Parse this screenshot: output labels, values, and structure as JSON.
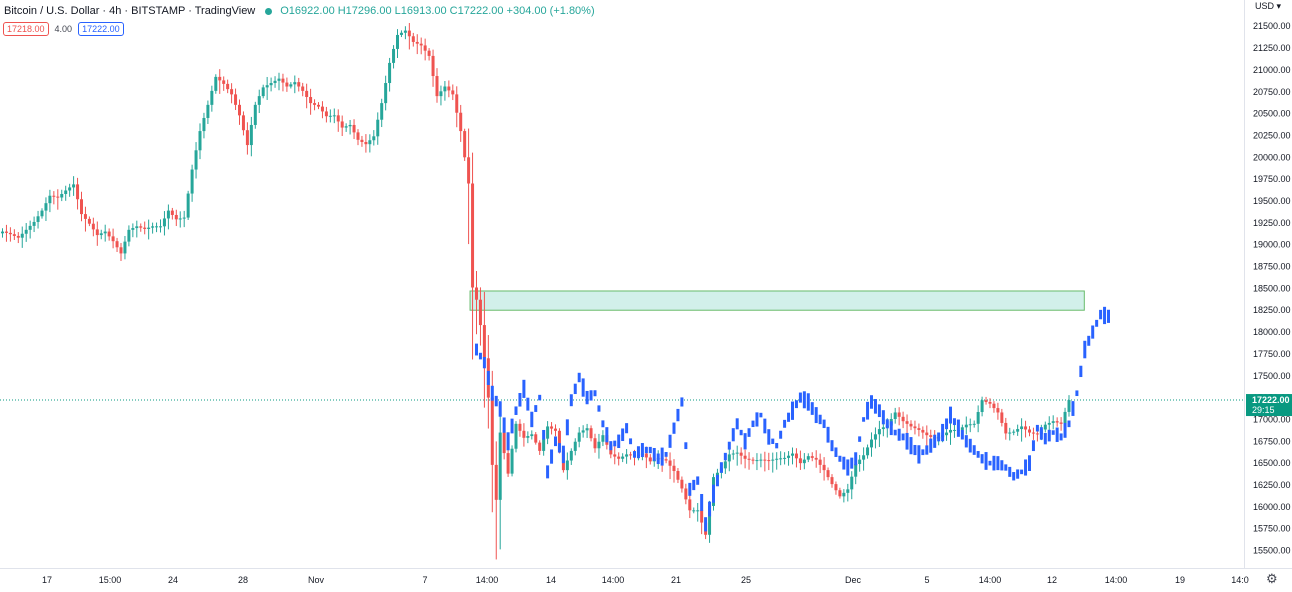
{
  "header": {
    "title": "Bitcoin / U.S. Dollar · 4h · BITSTAMP · TradingView",
    "ohlc": "O16922.00 H17296.00 L16913.00 C17222.00 +304.00 (+1.80%)"
  },
  "quote": {
    "bid": "17218.00",
    "spread": "4.00",
    "ask": "17222.00"
  },
  "currency": "USD ▾",
  "settings_icon": "gear-icon",
  "colors": {
    "up": "#26a69a",
    "down": "#ef5350",
    "projection": "#2962ff",
    "zone_fill": "#d2f0ea",
    "zone_border": "#66bb6a",
    "last_price": "#089981"
  },
  "last_price": {
    "value": 17222,
    "label": "17222.00",
    "countdown": "29:15"
  },
  "chart_data": {
    "type": "candlestick",
    "x_tick_labels": [
      "17",
      "15:00",
      "24",
      "28",
      "Nov",
      "7",
      "14:00",
      "14",
      "14:00",
      "21",
      "25",
      "Dec",
      "5",
      "14:00",
      "12",
      "14:00",
      "19",
      "14:0"
    ],
    "y_ticks": [
      15500,
      15750,
      16000,
      16250,
      16500,
      16750,
      17000,
      17250,
      17500,
      17750,
      18000,
      18250,
      18500,
      18750,
      19000,
      19250,
      19500,
      19750,
      20000,
      20250,
      20500,
      20750,
      21000,
      21250,
      21500
    ],
    "y_tick_labels": [
      "15500.00",
      "15750.00",
      "16000.00",
      "16250.00",
      "16500.00",
      "16750.00",
      "17000.00",
      "17250.00",
      "17500.00",
      "17750.00",
      "18000.00",
      "18250.00",
      "18500.00",
      "18750.00",
      "19000.00",
      "19250.00",
      "19500.00",
      "19750.00",
      "20000.00",
      "20250.00",
      "20500.00",
      "20750.00",
      "21000.00",
      "21250.00",
      "21500.00"
    ],
    "ylim": [
      15300,
      21800
    ],
    "price_series": [
      [
        0,
        19150
      ],
      [
        2,
        19120
      ],
      [
        4,
        19080
      ],
      [
        6,
        19170
      ],
      [
        8,
        19260
      ],
      [
        10,
        19390
      ],
      [
        12,
        19560
      ],
      [
        14,
        19540
      ],
      [
        16,
        19620
      ],
      [
        18,
        19690
      ],
      [
        20,
        19350
      ],
      [
        22,
        19240
      ],
      [
        24,
        19110
      ],
      [
        26,
        19150
      ],
      [
        28,
        19040
      ],
      [
        30,
        18900
      ],
      [
        32,
        19170
      ],
      [
        34,
        19210
      ],
      [
        36,
        19180
      ],
      [
        38,
        19210
      ],
      [
        40,
        19210
      ],
      [
        42,
        19390
      ],
      [
        44,
        19290
      ],
      [
        46,
        19310
      ],
      [
        48,
        19860
      ],
      [
        50,
        20300
      ],
      [
        52,
        20600
      ],
      [
        54,
        20920
      ],
      [
        56,
        20840
      ],
      [
        58,
        20720
      ],
      [
        60,
        20480
      ],
      [
        62,
        20140
      ],
      [
        64,
        20600
      ],
      [
        66,
        20800
      ],
      [
        68,
        20850
      ],
      [
        70,
        20900
      ],
      [
        72,
        20810
      ],
      [
        74,
        20860
      ],
      [
        76,
        20760
      ],
      [
        78,
        20620
      ],
      [
        80,
        20580
      ],
      [
        82,
        20470
      ],
      [
        84,
        20480
      ],
      [
        86,
        20340
      ],
      [
        88,
        20370
      ],
      [
        90,
        20200
      ],
      [
        92,
        20150
      ],
      [
        94,
        20240
      ],
      [
        96,
        20620
      ],
      [
        98,
        21080
      ],
      [
        100,
        21400
      ],
      [
        102,
        21450
      ],
      [
        104,
        21320
      ],
      [
        106,
        21280
      ],
      [
        108,
        21160
      ],
      [
        110,
        20700
      ],
      [
        112,
        20810
      ],
      [
        114,
        20720
      ],
      [
        116,
        20300
      ],
      [
        118,
        19700
      ],
      [
        119,
        18510
      ],
      [
        120,
        18370
      ],
      [
        121,
        18080
      ],
      [
        122,
        17700
      ],
      [
        123,
        17250
      ],
      [
        124,
        16480
      ],
      [
        125,
        16080
      ],
      [
        126,
        16850
      ],
      [
        128,
        16380
      ],
      [
        130,
        16950
      ],
      [
        132,
        16790
      ],
      [
        134,
        16830
      ],
      [
        136,
        16640
      ],
      [
        138,
        16920
      ],
      [
        140,
        16870
      ],
      [
        142,
        16420
      ],
      [
        144,
        16640
      ],
      [
        146,
        16850
      ],
      [
        148,
        16900
      ],
      [
        150,
        16670
      ],
      [
        152,
        16820
      ],
      [
        154,
        16600
      ],
      [
        156,
        16550
      ],
      [
        158,
        16600
      ],
      [
        160,
        16580
      ],
      [
        162,
        16610
      ],
      [
        164,
        16520
      ],
      [
        166,
        16560
      ],
      [
        168,
        16530
      ],
      [
        170,
        16410
      ],
      [
        172,
        16210
      ],
      [
        174,
        15960
      ],
      [
        176,
        15960
      ],
      [
        178,
        15680
      ],
      [
        180,
        16340
      ],
      [
        182,
        16440
      ],
      [
        184,
        16600
      ],
      [
        186,
        16620
      ],
      [
        188,
        16550
      ],
      [
        190,
        16530
      ],
      [
        192,
        16540
      ],
      [
        194,
        16530
      ],
      [
        196,
        16550
      ],
      [
        198,
        16560
      ],
      [
        200,
        16610
      ],
      [
        202,
        16500
      ],
      [
        204,
        16580
      ],
      [
        206,
        16540
      ],
      [
        208,
        16420
      ],
      [
        210,
        16260
      ],
      [
        212,
        16120
      ],
      [
        214,
        16200
      ],
      [
        216,
        16490
      ],
      [
        218,
        16590
      ],
      [
        220,
        16770
      ],
      [
        222,
        16890
      ],
      [
        224,
        16930
      ],
      [
        226,
        17080
      ],
      [
        228,
        16980
      ],
      [
        230,
        16920
      ],
      [
        232,
        16880
      ],
      [
        234,
        16820
      ],
      [
        236,
        16780
      ],
      [
        238,
        16820
      ],
      [
        240,
        16880
      ],
      [
        242,
        16880
      ],
      [
        244,
        16940
      ],
      [
        246,
        16950
      ],
      [
        248,
        17220
      ],
      [
        250,
        17180
      ],
      [
        252,
        17080
      ],
      [
        254,
        16840
      ],
      [
        256,
        16860
      ],
      [
        258,
        16920
      ],
      [
        260,
        16850
      ],
      [
        262,
        16830
      ],
      [
        264,
        16940
      ],
      [
        266,
        16980
      ],
      [
        268,
        16950
      ],
      [
        270,
        17222
      ]
    ],
    "projection_series": [
      [
        120,
        17800
      ],
      [
        122,
        17650
      ],
      [
        124,
        17300
      ],
      [
        126,
        17120
      ],
      [
        128,
        16750
      ],
      [
        130,
        17100
      ],
      [
        132,
        17350
      ],
      [
        134,
        17000
      ],
      [
        136,
        17250
      ],
      [
        138,
        16400
      ],
      [
        140,
        16750
      ],
      [
        142,
        16600
      ],
      [
        144,
        17220
      ],
      [
        146,
        17480
      ],
      [
        148,
        17250
      ],
      [
        150,
        17300
      ],
      [
        152,
        16950
      ],
      [
        154,
        16700
      ],
      [
        156,
        16750
      ],
      [
        158,
        16900
      ],
      [
        160,
        16600
      ],
      [
        162,
        16650
      ],
      [
        164,
        16650
      ],
      [
        166,
        16550
      ],
      [
        168,
        16600
      ],
      [
        170,
        16900
      ],
      [
        172,
        17200
      ],
      [
        174,
        16200
      ],
      [
        176,
        16300
      ],
      [
        178,
        15800
      ],
      [
        180,
        16150
      ],
      [
        182,
        16450
      ],
      [
        184,
        16700
      ],
      [
        186,
        16950
      ],
      [
        188,
        16750
      ],
      [
        190,
        16950
      ],
      [
        192,
        17050
      ],
      [
        194,
        16800
      ],
      [
        196,
        16700
      ],
      [
        198,
        16950
      ],
      [
        200,
        17100
      ],
      [
        202,
        17250
      ],
      [
        204,
        17200
      ],
      [
        206,
        17050
      ],
      [
        208,
        16950
      ],
      [
        210,
        16700
      ],
      [
        212,
        16550
      ],
      [
        214,
        16450
      ],
      [
        216,
        16550
      ],
      [
        218,
        17000
      ],
      [
        220,
        17200
      ],
      [
        222,
        17100
      ],
      [
        224,
        16950
      ],
      [
        226,
        16850
      ],
      [
        228,
        16800
      ],
      [
        230,
        16700
      ],
      [
        232,
        16600
      ],
      [
        234,
        16650
      ],
      [
        236,
        16750
      ],
      [
        238,
        16850
      ],
      [
        240,
        17050
      ],
      [
        242,
        16900
      ],
      [
        244,
        16750
      ],
      [
        246,
        16650
      ],
      [
        248,
        16550
      ],
      [
        250,
        16500
      ],
      [
        252,
        16500
      ],
      [
        254,
        16450
      ],
      [
        256,
        16350
      ],
      [
        258,
        16400
      ],
      [
        260,
        16500
      ],
      [
        262,
        16900
      ],
      [
        264,
        16780
      ],
      [
        266,
        16850
      ],
      [
        268,
        16800
      ],
      [
        270,
        16950
      ],
      [
        272,
        17300
      ],
      [
        274,
        17800
      ],
      [
        276,
        18000
      ],
      [
        278,
        18200
      ],
      [
        280,
        18180
      ]
    ],
    "zones": [
      {
        "x_start": 119,
        "x_end": 274,
        "y_low": 18250,
        "y_high": 18470
      }
    ],
    "last_price_line": 17222
  }
}
